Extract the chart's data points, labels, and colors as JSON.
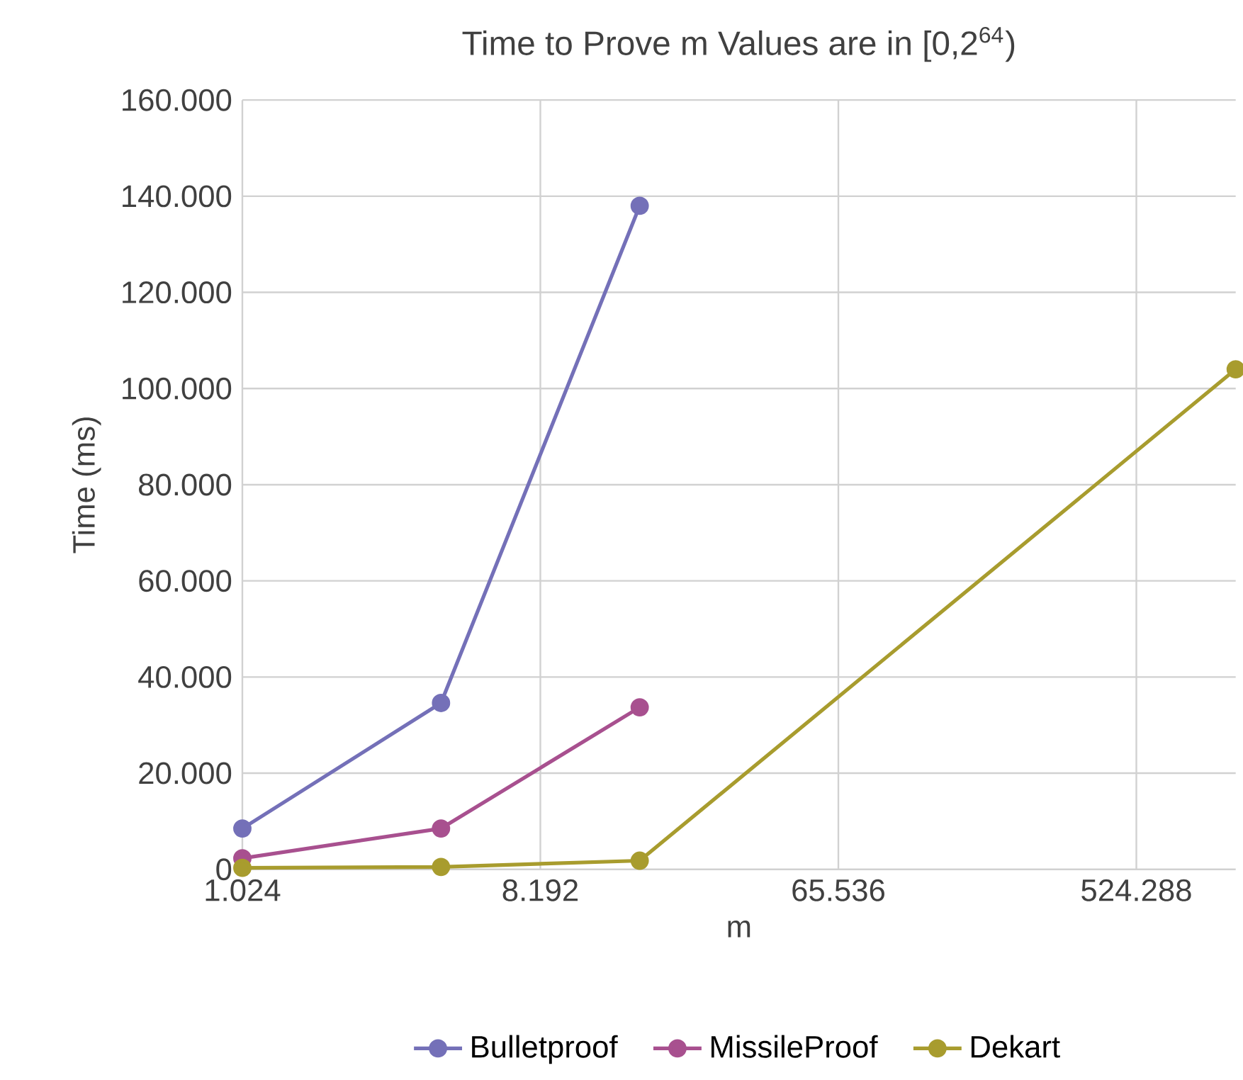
{
  "chart_data": {
    "type": "line",
    "title": "Time to Prove m Values are in [0,2$^{64}$)",
    "xlabel": "m",
    "ylabel": "Time (ms)",
    "log": "x",
    "grid": true,
    "legend": "bottom",
    "marker": "circle",
    "line_style": "solid",
    "xlim": [
      1024,
      1048576
    ],
    "xticks": [
      {
        "value": 1024,
        "label": "1.024"
      },
      {
        "value": 8192,
        "label": "8.192"
      },
      {
        "value": 65536,
        "label": "65.536"
      },
      {
        "value": 524288,
        "label": "524.288"
      }
    ],
    "ylim": [
      0,
      160000
    ],
    "yticks": [
      0,
      {
        "value": 20000,
        "label": "20.000"
      },
      {
        "value": 40000,
        "label": "40.000"
      },
      {
        "value": 60000,
        "label": "60.000"
      },
      {
        "value": 80000,
        "label": "80.000"
      },
      {
        "value": 100000,
        "label": "100.000"
      },
      {
        "value": 120000,
        "label": "120.000"
      },
      {
        "value": 140000,
        "label": "140.000"
      },
      {
        "value": 160000,
        "label": "160.000"
      }
    ],
    "series": [
      {
        "name": "Bulletproof",
        "color": "#7470b8",
        "x": [
          1024,
          4096,
          16384
        ],
        "values": [
          8500,
          34600,
          138000
        ]
      },
      {
        "name": "MissileProof",
        "color": "#a8508f",
        "x": [
          1024,
          4096,
          16384
        ],
        "values": [
          2300,
          8500,
          33700
        ]
      },
      {
        "name": "Dekart",
        "color": "#a89c2e",
        "x": [
          1024,
          4096,
          16384,
          1048576
        ],
        "values": [
          300,
          500,
          1800,
          104000
        ]
      }
    ]
  }
}
